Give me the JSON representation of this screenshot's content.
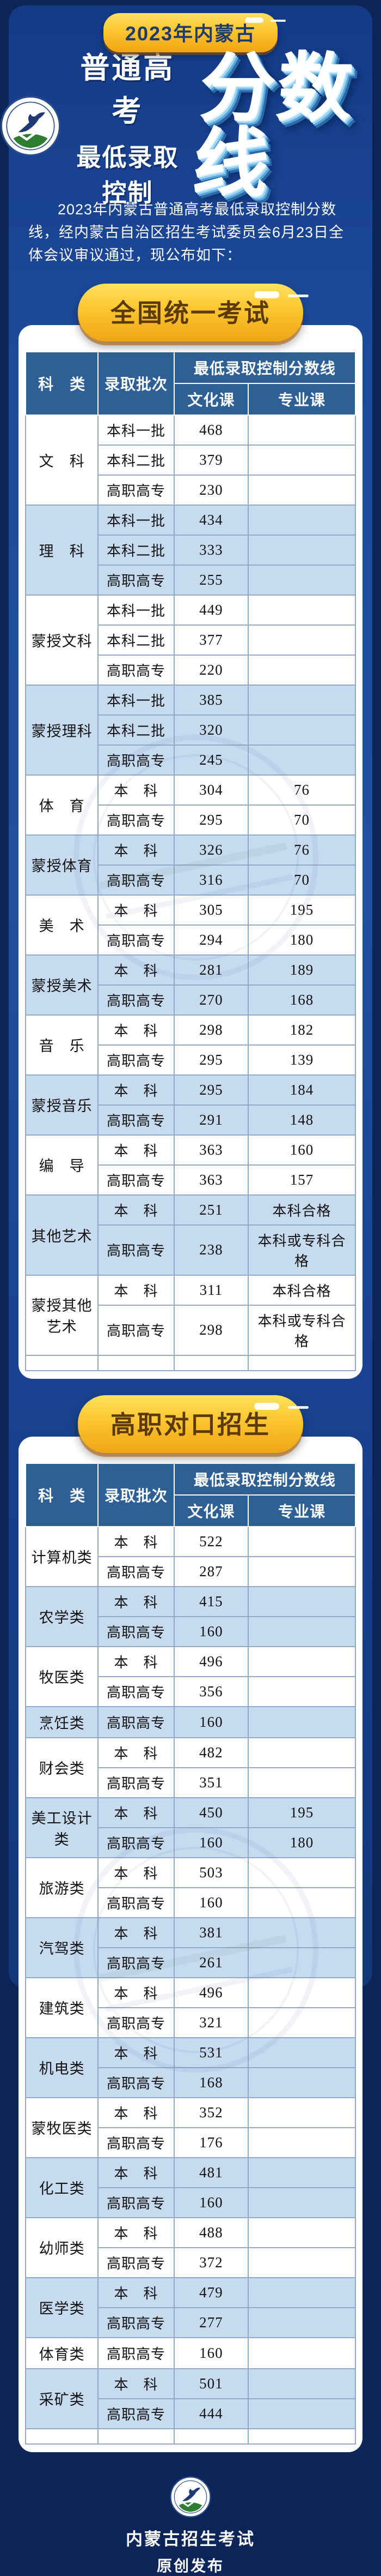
{
  "badge": {
    "label": "2023年内蒙古"
  },
  "title": {
    "line1": "普通高考",
    "line2": "最低录取控制",
    "big": "分数线"
  },
  "intro": "2023年内蒙古普通高考最低录取控制分数线，经内蒙古自治区招生考试委员会6月23日全体会议审议通过，现公布如下：",
  "table_headers": {
    "col_category": "科　类",
    "col_batch": "录取批次",
    "col_span": "最低录取控制分数线",
    "col_culture": "文化课",
    "col_major": "专业课"
  },
  "sections": [
    {
      "banner": "全国统一考试",
      "groups": [
        {
          "category": "文　科",
          "rows": [
            [
              "本科一批",
              "468",
              ""
            ],
            [
              "本科二批",
              "379",
              ""
            ],
            [
              "高职高专",
              "230",
              ""
            ]
          ]
        },
        {
          "category": "理　科",
          "rows": [
            [
              "本科一批",
              "434",
              ""
            ],
            [
              "本科二批",
              "333",
              ""
            ],
            [
              "高职高专",
              "255",
              ""
            ]
          ]
        },
        {
          "category": "蒙授文科",
          "rows": [
            [
              "本科一批",
              "449",
              ""
            ],
            [
              "本科二批",
              "377",
              ""
            ],
            [
              "高职高专",
              "220",
              ""
            ]
          ]
        },
        {
          "category": "蒙授理科",
          "rows": [
            [
              "本科一批",
              "385",
              ""
            ],
            [
              "本科二批",
              "320",
              ""
            ],
            [
              "高职高专",
              "245",
              ""
            ]
          ]
        },
        {
          "category": "体　育",
          "rows": [
            [
              "本　科",
              "304",
              "76"
            ],
            [
              "高职高专",
              "295",
              "70"
            ]
          ]
        },
        {
          "category": "蒙授体育",
          "rows": [
            [
              "本　科",
              "326",
              "76"
            ],
            [
              "高职高专",
              "316",
              "70"
            ]
          ]
        },
        {
          "category": "美　术",
          "rows": [
            [
              "本　科",
              "305",
              "195"
            ],
            [
              "高职高专",
              "294",
              "180"
            ]
          ]
        },
        {
          "category": "蒙授美术",
          "rows": [
            [
              "本　科",
              "281",
              "189"
            ],
            [
              "高职高专",
              "270",
              "168"
            ]
          ]
        },
        {
          "category": "音　乐",
          "rows": [
            [
              "本　科",
              "298",
              "182"
            ],
            [
              "高职高专",
              "295",
              "139"
            ]
          ]
        },
        {
          "category": "蒙授音乐",
          "rows": [
            [
              "本　科",
              "295",
              "184"
            ],
            [
              "高职高专",
              "291",
              "148"
            ]
          ]
        },
        {
          "category": "编　导",
          "rows": [
            [
              "本　科",
              "363",
              "160"
            ],
            [
              "高职高专",
              "363",
              "157"
            ]
          ]
        },
        {
          "category": "其他艺术",
          "rows": [
            [
              "本　科",
              "251",
              "本科合格"
            ],
            [
              "高职高专",
              "238",
              "本科或专科合格"
            ]
          ]
        },
        {
          "category": "蒙授其他艺术",
          "rows": [
            [
              "本　科",
              "311",
              "本科合格"
            ],
            [
              "高职高专",
              "298",
              "本科或专科合格"
            ]
          ]
        }
      ]
    },
    {
      "banner": "高职对口招生",
      "groups": [
        {
          "category": "计算机类",
          "rows": [
            [
              "本　科",
              "522",
              ""
            ],
            [
              "高职高专",
              "287",
              ""
            ]
          ]
        },
        {
          "category": "农学类",
          "rows": [
            [
              "本　科",
              "415",
              ""
            ],
            [
              "高职高专",
              "160",
              ""
            ]
          ]
        },
        {
          "category": "牧医类",
          "rows": [
            [
              "本　科",
              "496",
              ""
            ],
            [
              "高职高专",
              "356",
              ""
            ]
          ]
        },
        {
          "category": "烹饪类",
          "rows": [
            [
              "高职高专",
              "160",
              ""
            ]
          ]
        },
        {
          "category": "财会类",
          "rows": [
            [
              "本　科",
              "482",
              ""
            ],
            [
              "高职高专",
              "351",
              ""
            ]
          ]
        },
        {
          "category": "美工设计类",
          "rows": [
            [
              "本　科",
              "450",
              "195"
            ],
            [
              "高职高专",
              "160",
              "180"
            ]
          ]
        },
        {
          "category": "旅游类",
          "rows": [
            [
              "本　科",
              "503",
              ""
            ],
            [
              "高职高专",
              "160",
              ""
            ]
          ]
        },
        {
          "category": "汽驾类",
          "rows": [
            [
              "本　科",
              "381",
              ""
            ],
            [
              "高职高专",
              "261",
              ""
            ]
          ]
        },
        {
          "category": "建筑类",
          "rows": [
            [
              "本　科",
              "496",
              ""
            ],
            [
              "高职高专",
              "321",
              ""
            ]
          ]
        },
        {
          "category": "机电类",
          "rows": [
            [
              "本　科",
              "531",
              ""
            ],
            [
              "高职高专",
              "168",
              ""
            ]
          ]
        },
        {
          "category": "蒙牧医类",
          "rows": [
            [
              "本　科",
              "352",
              ""
            ],
            [
              "高职高专",
              "176",
              ""
            ]
          ]
        },
        {
          "category": "化工类",
          "rows": [
            [
              "本　科",
              "481",
              ""
            ],
            [
              "高职高专",
              "160",
              ""
            ]
          ]
        },
        {
          "category": "幼师类",
          "rows": [
            [
              "本　科",
              "488",
              ""
            ],
            [
              "高职高专",
              "372",
              ""
            ]
          ]
        },
        {
          "category": "医学类",
          "rows": [
            [
              "本　科",
              "479",
              ""
            ],
            [
              "高职高专",
              "277",
              ""
            ]
          ]
        },
        {
          "category": "体育类",
          "rows": [
            [
              "高职高专",
              "160",
              ""
            ]
          ]
        },
        {
          "category": "采矿类",
          "rows": [
            [
              "本　科",
              "501",
              ""
            ],
            [
              "高职高专",
              "444",
              ""
            ]
          ]
        }
      ]
    }
  ],
  "footer": {
    "line1": "内蒙古招生考试",
    "line2": "原创发布"
  },
  "colors": {
    "background_navy": "#0c2558",
    "background_blue": "#1d4b9c",
    "accent_gold": "#fdc62e",
    "banner_text_brown": "#5c3a05",
    "table_header_blue": "#2e6096",
    "table_row_blue": "#c6daf0"
  }
}
